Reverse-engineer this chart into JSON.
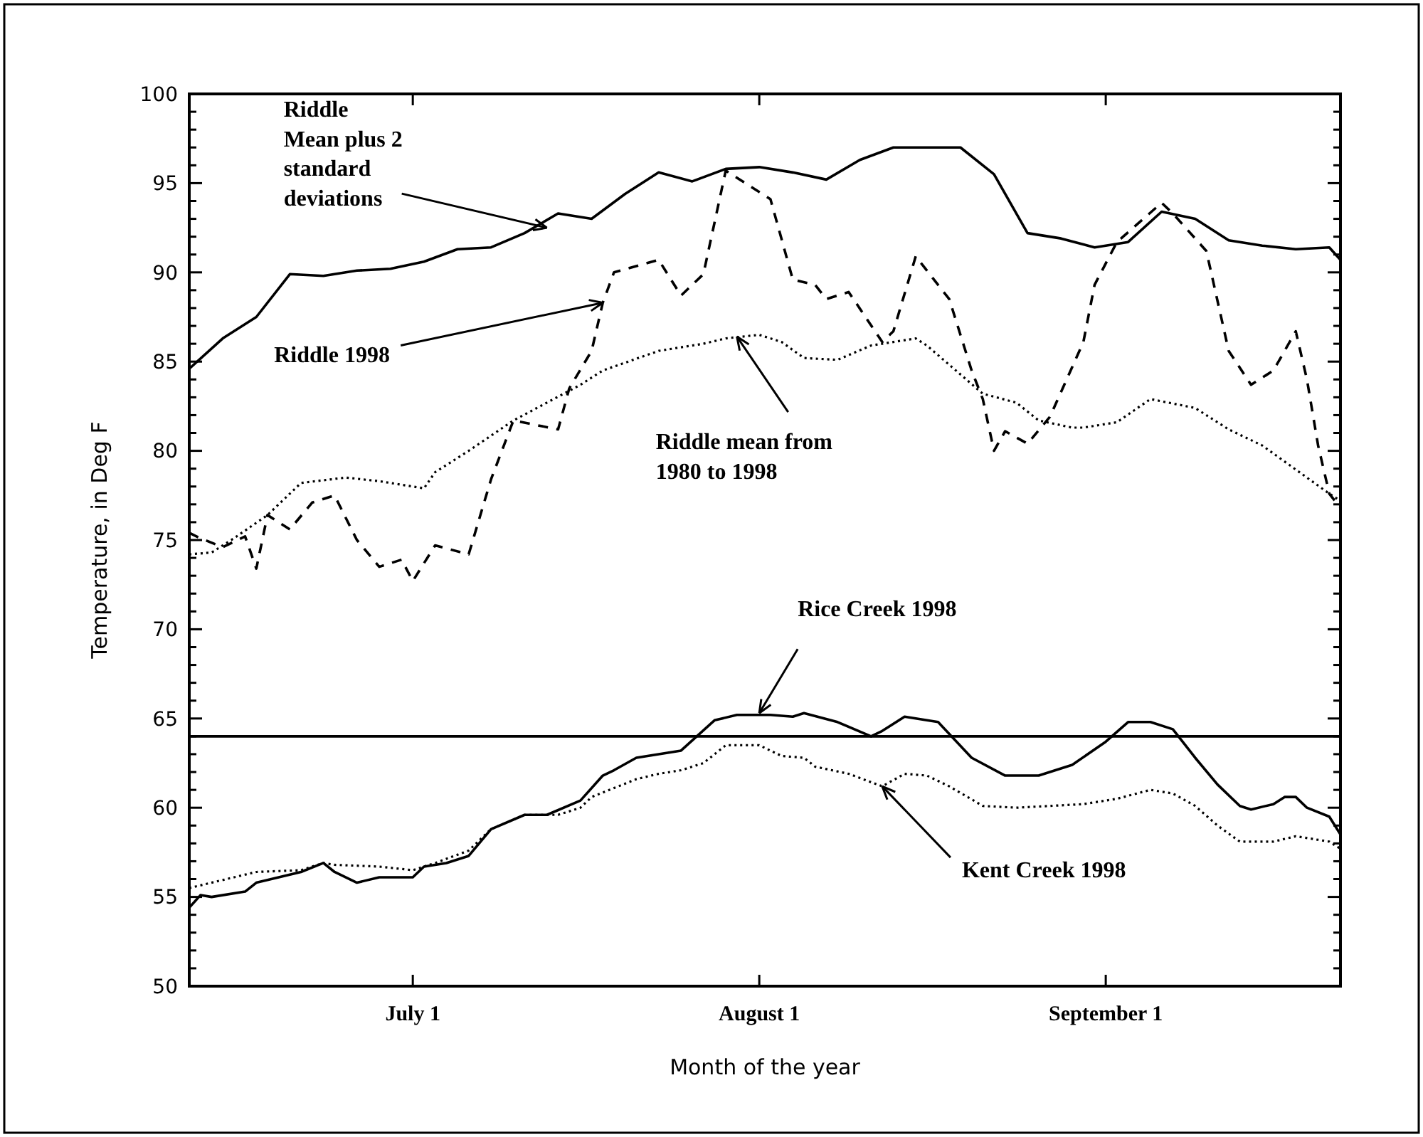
{
  "chart_data": {
    "type": "line",
    "xlabel": "Month of the year",
    "ylabel": "Temperature, in Deg F",
    "xlim": [
      "--06-11",
      "--09-22"
    ],
    "xticks": [
      {
        "value": "--07-01",
        "label": "July 1"
      },
      {
        "value": "--08-01",
        "label": "August 1"
      },
      {
        "value": "--09-01",
        "label": "September 1"
      }
    ],
    "ylim": [
      50,
      100
    ],
    "yticks": [
      50,
      {
        "value": 51,
        "label": null
      },
      {
        "value": 52,
        "label": null
      },
      {
        "value": 53,
        "label": null
      },
      {
        "value": 54,
        "label": null
      },
      55,
      {
        "value": 56,
        "label": null
      },
      {
        "value": 57,
        "label": null
      },
      {
        "value": 58,
        "label": null
      },
      {
        "value": 59,
        "label": null
      },
      60,
      {
        "value": 61,
        "label": null
      },
      {
        "value": 62,
        "label": null
      },
      {
        "value": 63,
        "label": null
      },
      {
        "value": 64,
        "label": null
      },
      65,
      {
        "value": 66,
        "label": null
      },
      {
        "value": 67,
        "label": null
      },
      {
        "value": 68,
        "label": null
      },
      {
        "value": 69,
        "label": null
      },
      70,
      {
        "value": 71,
        "label": null
      },
      {
        "value": 72,
        "label": null
      },
      {
        "value": 73,
        "label": null
      },
      {
        "value": 74,
        "label": null
      },
      75,
      {
        "value": 76,
        "label": null
      },
      {
        "value": 77,
        "label": null
      },
      {
        "value": 78,
        "label": null
      },
      {
        "value": 79,
        "label": null
      },
      80,
      {
        "value": 81,
        "label": null
      },
      {
        "value": 82,
        "label": null
      },
      {
        "value": 83,
        "label": null
      },
      {
        "value": 84,
        "label": null
      },
      85,
      {
        "value": 86,
        "label": null
      },
      {
        "value": 87,
        "label": null
      },
      {
        "value": 88,
        "label": null
      },
      {
        "value": 89,
        "label": null
      },
      90,
      {
        "value": 91,
        "label": null
      },
      {
        "value": 92,
        "label": null
      },
      {
        "value": 93,
        "label": null
      },
      {
        "value": 94,
        "label": null
      },
      95,
      {
        "value": 96,
        "label": null
      },
      {
        "value": 97,
        "label": null
      },
      {
        "value": 98,
        "label": null
      },
      {
        "value": 99,
        "label": null
      },
      100
    ],
    "ref_lines": [
      {
        "axis": "y",
        "value": 64,
        "color": "#000000",
        "line_style": "solid"
      }
    ],
    "series": [
      {
        "color": "#000000",
        "line_style": "solid",
        "x": [
          "--06-11",
          "--06-14",
          "--06-17",
          "--06-20",
          "--06-23",
          "--06-26",
          "--06-29",
          "--07-02",
          "--07-05",
          "--07-08",
          "--07-11",
          "--07-14",
          "--07-17",
          "--07-20",
          "--07-23",
          "--07-26",
          "--07-29",
          "--08-01",
          "--08-04",
          "--08-07",
          "--08-10",
          "--08-13",
          "--08-16",
          "--08-19",
          "--08-22",
          "--08-25",
          "--08-28",
          "--08-31",
          "--09-03",
          "--09-06",
          "--09-09",
          "--09-12",
          "--09-15",
          "--09-18",
          "--09-21",
          "--09-22"
        ],
        "values": [
          84.6,
          86.3,
          87.5,
          89.9,
          89.8,
          90.1,
          90.2,
          90.6,
          91.3,
          91.4,
          92.2,
          93.3,
          93,
          94.4,
          95.6,
          95.1,
          95.8,
          95.9,
          95.6,
          95.2,
          96.3,
          97,
          97,
          97,
          95.5,
          92.2,
          91.9,
          91.4,
          91.7,
          93.4,
          93,
          91.8,
          91.5,
          91.3,
          91.4,
          90.7
        ]
      },
      {
        "color": "#000000",
        "line_style": "dashed",
        "x": [
          "--06-11",
          "--06-12",
          "--06-14",
          "--06-16",
          "--06-17",
          "--06-18",
          "--06-20",
          "--06-22",
          "--06-24",
          "--06-26",
          "--06-28",
          "--06-30",
          "--07-01",
          "--07-03",
          "--07-06",
          "--07-08",
          "--07-10",
          "--07-14",
          "--07-15",
          "--07-17",
          "--07-18",
          "--07-19",
          "--07-23",
          "--07-25",
          "--07-27",
          "--07-29",
          "--08-02",
          "--08-04",
          "--08-06",
          "--08-07",
          "--08-09",
          "--08-12",
          "--08-13",
          "--08-15",
          "--08-18",
          "--08-20",
          "--08-21",
          "--08-22",
          "--08-23",
          "--08-25",
          "--08-27",
          "--08-30",
          "--08-31",
          "--09-02",
          "--09-06",
          "--09-07",
          "--09-10",
          "--09-12",
          "--09-14",
          "--09-16",
          "--09-18",
          "--09-19",
          "--09-20",
          "--09-21",
          "--09-22"
        ],
        "values": [
          75.4,
          75.1,
          74.6,
          75.2,
          73.4,
          76.4,
          75.6,
          77.1,
          77.5,
          75,
          73.5,
          73.9,
          72.7,
          74.7,
          74.2,
          78.4,
          81.7,
          81.2,
          83.5,
          85.6,
          88.3,
          90,
          90.7,
          88.7,
          89.9,
          95.7,
          94.1,
          89.6,
          89.3,
          88.5,
          88.9,
          86.1,
          86.7,
          90.9,
          88.5,
          84.5,
          82.9,
          80,
          81.1,
          80.4,
          81.9,
          86.1,
          89.3,
          91.7,
          93.9,
          93.3,
          91.2,
          85.6,
          83.7,
          84.5,
          86.7,
          84,
          80.3,
          77.6,
          76.8
        ]
      },
      {
        "color": "#000000",
        "line_style": "dotted",
        "x": [
          "--06-11",
          "--06-13",
          "--06-15",
          "--06-18",
          "--06-21",
          "--06-25",
          "--06-28",
          "--07-02",
          "--07-03",
          "--07-06",
          "--07-10",
          "--07-16",
          "--07-18",
          "--07-23",
          "--07-27",
          "--07-29",
          "--08-01",
          "--08-03",
          "--08-05",
          "--08-08",
          "--08-11",
          "--08-15",
          "--08-16",
          "--08-21",
          "--08-24",
          "--08-26",
          "--08-29",
          "--08-30",
          "--09-02",
          "--09-05",
          "--09-09",
          "--09-12",
          "--09-15",
          "--09-21",
          "--09-22"
        ],
        "values": [
          74.2,
          74.3,
          75.1,
          76.4,
          78.2,
          78.5,
          78.3,
          77.9,
          78.8,
          80,
          81.7,
          83.7,
          84.5,
          85.6,
          86,
          86.3,
          86.5,
          86.1,
          85.2,
          85.1,
          85.9,
          86.3,
          85.9,
          83.2,
          82.7,
          81.7,
          81.3,
          81.3,
          81.6,
          82.9,
          82.4,
          81.2,
          80.3,
          77.6,
          77.2
        ]
      },
      {
        "color": "#000000",
        "line_style": "solid",
        "x": [
          "--06-11",
          "--06-12",
          "--06-13",
          "--06-16",
          "--06-17",
          "--06-19",
          "--06-21",
          "--06-23",
          "--06-24",
          "--06-26",
          "--06-28",
          "--07-01",
          "--07-02",
          "--07-04",
          "--07-06",
          "--07-08",
          "--07-11",
          "--07-13",
          "--07-16",
          "--07-18",
          "--07-19",
          "--07-21",
          "--07-25",
          "--07-28",
          "--07-30",
          "--08-02",
          "--08-04",
          "--08-05",
          "--08-08",
          "--08-11",
          "--08-12",
          "--08-14",
          "--08-17",
          "--08-20",
          "--08-23",
          "--08-26",
          "--08-29",
          "--09-01",
          "--09-03",
          "--09-05",
          "--09-07",
          "--09-09",
          "--09-11",
          "--09-13",
          "--09-14",
          "--09-16",
          "--09-17",
          "--09-18",
          "--09-19",
          "--09-21",
          "--09-22"
        ],
        "values": [
          54.4,
          55.1,
          55,
          55.3,
          55.8,
          56.1,
          56.4,
          56.9,
          56.4,
          55.8,
          56.1,
          56.1,
          56.7,
          56.9,
          57.3,
          58.8,
          59.6,
          59.6,
          60.4,
          61.8,
          62.1,
          62.8,
          63.2,
          64.9,
          65.2,
          65.2,
          65.1,
          65.3,
          64.8,
          64,
          64.3,
          65.1,
          64.8,
          62.8,
          61.8,
          61.8,
          62.4,
          63.7,
          64.8,
          64.8,
          64.4,
          62.8,
          61.3,
          60.1,
          59.9,
          60.2,
          60.6,
          60.6,
          60,
          59.5,
          58.5
        ]
      },
      {
        "color": "#000000",
        "line_style": "dotted",
        "x": [
          "--06-11",
          "--06-15",
          "--06-17",
          "--06-21",
          "--06-23",
          "--06-24",
          "--06-28",
          "--07-01",
          "--07-03",
          "--07-06",
          "--07-08",
          "--07-11",
          "--07-14",
          "--07-16",
          "--07-17",
          "--07-21",
          "--07-23",
          "--07-25",
          "--07-27",
          "--07-29",
          "--08-01",
          "--08-03",
          "--08-05",
          "--08-06",
          "--08-09",
          "--08-12",
          "--08-14",
          "--08-16",
          "--08-18",
          "--08-21",
          "--08-24",
          "--08-30",
          "--09-02",
          "--09-05",
          "--09-07",
          "--09-09",
          "--09-11",
          "--09-13",
          "--09-16",
          "--09-18",
          "--09-21",
          "--09-22"
        ],
        "values": [
          55.5,
          56.1,
          56.4,
          56.5,
          56.9,
          56.8,
          56.7,
          56.5,
          56.9,
          57.6,
          58.8,
          59.6,
          59.6,
          60,
          60.6,
          61.6,
          61.9,
          62.1,
          62.5,
          63.5,
          63.5,
          62.9,
          62.8,
          62.3,
          61.9,
          61.2,
          61.9,
          61.8,
          61.2,
          60.1,
          60,
          60.2,
          60.5,
          61,
          60.8,
          60.1,
          59,
          58.1,
          58.1,
          58.4,
          58.1,
          57.7
        ]
      }
    ],
    "annotations": [
      {
        "text": "Riddle\nMean plus 2\nstandard\ndeviations",
        "x": "--07-13",
        "y": 92.5
      },
      {
        "text": "Riddle 1998",
        "x": "--07-18",
        "y": 88.3
      },
      {
        "text": "Riddle mean from\n1980 to 1998",
        "x": "--07-30",
        "y": 86.4
      },
      {
        "text": "Rice Creek 1998",
        "x": "--08-01",
        "y": 65.3
      },
      {
        "text": "Kent Creek 1998",
        "x": "--08-12",
        "y": 61.2
      }
    ]
  }
}
